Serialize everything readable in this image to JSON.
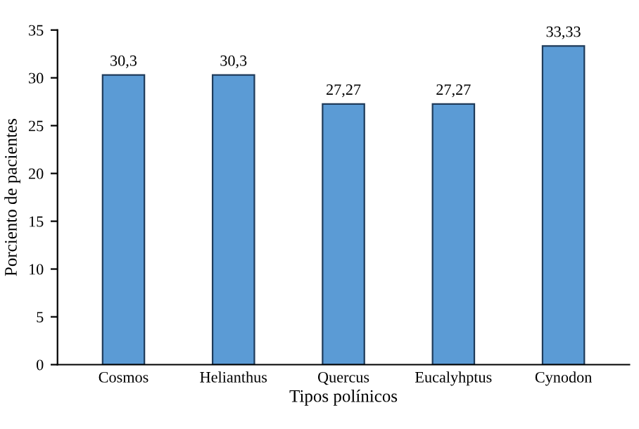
{
  "chart_data": {
    "type": "bar",
    "xlabel": "Tipos polínicos",
    "ylabel": "Porciento de pacientes",
    "categories": [
      "Cosmos",
      "Helianthus",
      "Quercus",
      "Eucalyhptus",
      "Cynodon"
    ],
    "values": [
      30.3,
      30.3,
      27.27,
      27.27,
      33.33
    ],
    "value_labels": [
      "30,3",
      "30,3",
      "27,27",
      "27,27",
      "33,33"
    ],
    "color": "#5b9bd5",
    "ylim": [
      0,
      35
    ],
    "yticks": [
      0,
      5,
      10,
      15,
      20,
      25,
      30,
      35
    ],
    "grid": false
  }
}
